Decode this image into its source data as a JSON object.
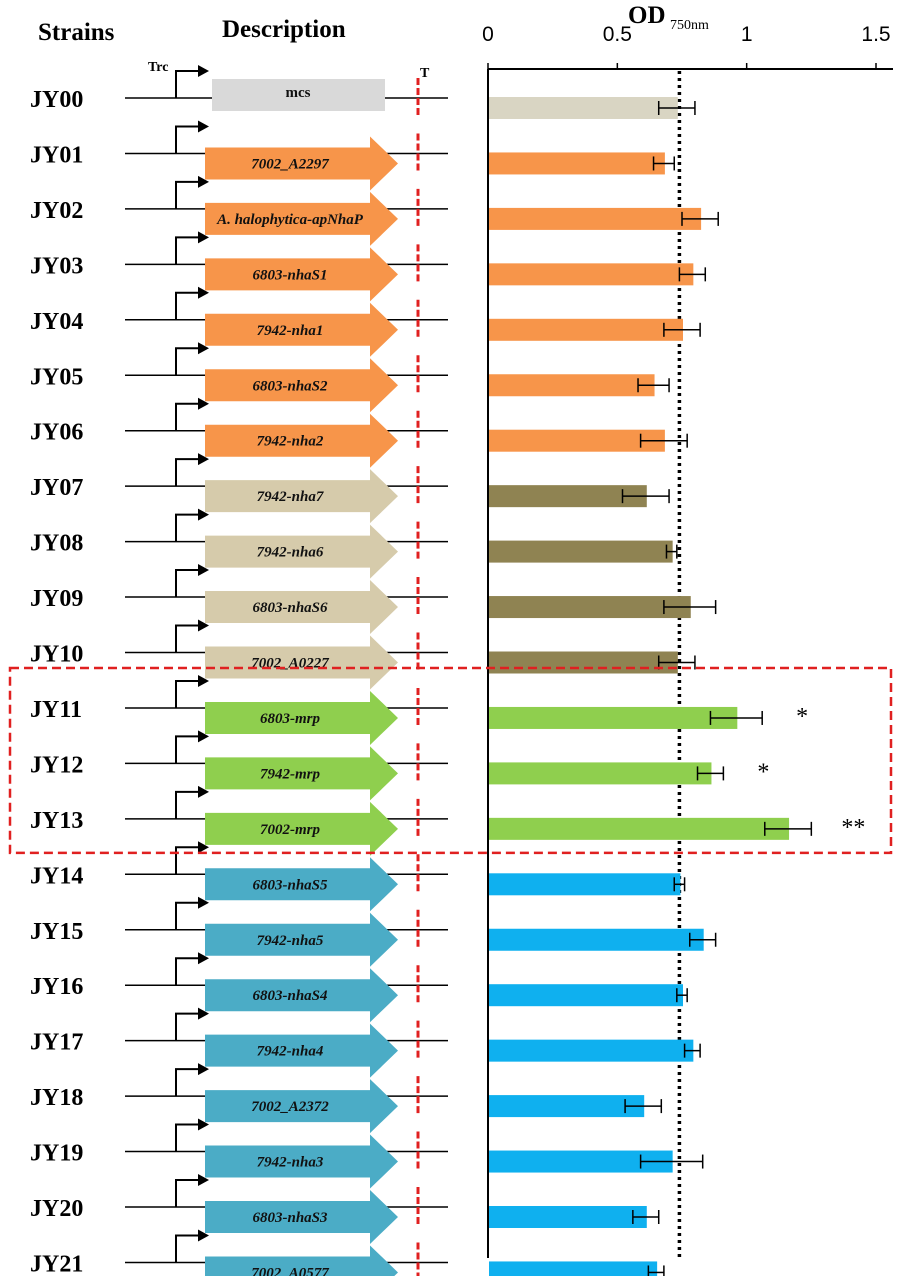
{
  "headers": {
    "strains": "Strains",
    "description": "Description",
    "promoter": "Trc",
    "terminator": "T",
    "od_label": "OD",
    "od_sub": "750nm"
  },
  "colors": {
    "control": "#d9d5c3",
    "control_arrow": "#d9d9d9",
    "orange": "#f7954a",
    "tan_arrow": "#d6cbab",
    "olive_bar": "#8f8352",
    "green": "#8fcf4e",
    "blue_arrow": "#4bacc6",
    "blue_bar": "#0fb0ef",
    "terminator": "#e02020",
    "highlight_box": "#e02020"
  },
  "chart_data": {
    "type": "bar",
    "orientation": "horizontal",
    "xlabel": "OD 750nm",
    "xlim": [
      0,
      1.5
    ],
    "xticks": [
      "0",
      "0.5",
      "1",
      "1.5"
    ],
    "reference_line": 0.74,
    "rows": [
      {
        "strain": "JY00",
        "gene": "mcs",
        "group": "control",
        "value": 0.73,
        "err": 0.07,
        "sig": ""
      },
      {
        "strain": "JY01",
        "gene": "7002_A2297",
        "group": "orange",
        "value": 0.68,
        "err": 0.04,
        "sig": ""
      },
      {
        "strain": "JY02",
        "gene": "A. halophytica-apNhaP",
        "group": "orange",
        "value": 0.82,
        "err": 0.07,
        "sig": ""
      },
      {
        "strain": "JY03",
        "gene": "6803-nhaS1",
        "group": "orange",
        "value": 0.79,
        "err": 0.05,
        "sig": ""
      },
      {
        "strain": "JY04",
        "gene": "7942-nha1",
        "group": "orange",
        "value": 0.75,
        "err": 0.07,
        "sig": ""
      },
      {
        "strain": "JY05",
        "gene": "6803-nhaS2",
        "group": "orange",
        "value": 0.64,
        "err": 0.06,
        "sig": ""
      },
      {
        "strain": "JY06",
        "gene": "7942-nha2",
        "group": "orange",
        "value": 0.68,
        "err": 0.09,
        "sig": ""
      },
      {
        "strain": "JY07",
        "gene": "7942-nha7",
        "group": "olive",
        "value": 0.61,
        "err": 0.09,
        "sig": ""
      },
      {
        "strain": "JY08",
        "gene": "7942-nha6",
        "group": "olive",
        "value": 0.71,
        "err": 0.02,
        "sig": ""
      },
      {
        "strain": "JY09",
        "gene": "6803-nhaS6",
        "group": "olive",
        "value": 0.78,
        "err": 0.1,
        "sig": ""
      },
      {
        "strain": "JY10",
        "gene": "7002_A0227",
        "group": "olive",
        "value": 0.73,
        "err": 0.07,
        "sig": ""
      },
      {
        "strain": "JY11",
        "gene": "6803-mrp",
        "group": "green",
        "value": 0.96,
        "err": 0.1,
        "sig": "*"
      },
      {
        "strain": "JY12",
        "gene": "7942-mrp",
        "group": "green",
        "value": 0.86,
        "err": 0.05,
        "sig": "*"
      },
      {
        "strain": "JY13",
        "gene": "7002-mrp",
        "group": "green",
        "value": 1.16,
        "err": 0.09,
        "sig": "**"
      },
      {
        "strain": "JY14",
        "gene": "6803-nhaS5",
        "group": "blue",
        "value": 0.74,
        "err": 0.02,
        "sig": ""
      },
      {
        "strain": "JY15",
        "gene": "7942-nha5",
        "group": "blue",
        "value": 0.83,
        "err": 0.05,
        "sig": ""
      },
      {
        "strain": "JY16",
        "gene": "6803-nhaS4",
        "group": "blue",
        "value": 0.75,
        "err": 0.02,
        "sig": ""
      },
      {
        "strain": "JY17",
        "gene": "7942-nha4",
        "group": "blue",
        "value": 0.79,
        "err": 0.03,
        "sig": ""
      },
      {
        "strain": "JY18",
        "gene": "7002_A2372",
        "group": "blue",
        "value": 0.6,
        "err": 0.07,
        "sig": ""
      },
      {
        "strain": "JY19",
        "gene": "7942-nha3",
        "group": "blue",
        "value": 0.71,
        "err": 0.12,
        "sig": ""
      },
      {
        "strain": "JY20",
        "gene": "6803-nhaS3",
        "group": "blue",
        "value": 0.61,
        "err": 0.05,
        "sig": ""
      },
      {
        "strain": "JY21",
        "gene": "7002_A0577",
        "group": "blue",
        "value": 0.65,
        "err": 0.03,
        "sig": ""
      }
    ],
    "highlighted_strains": [
      "JY11",
      "JY12",
      "JY13"
    ],
    "legend": "none",
    "grid": false
  }
}
